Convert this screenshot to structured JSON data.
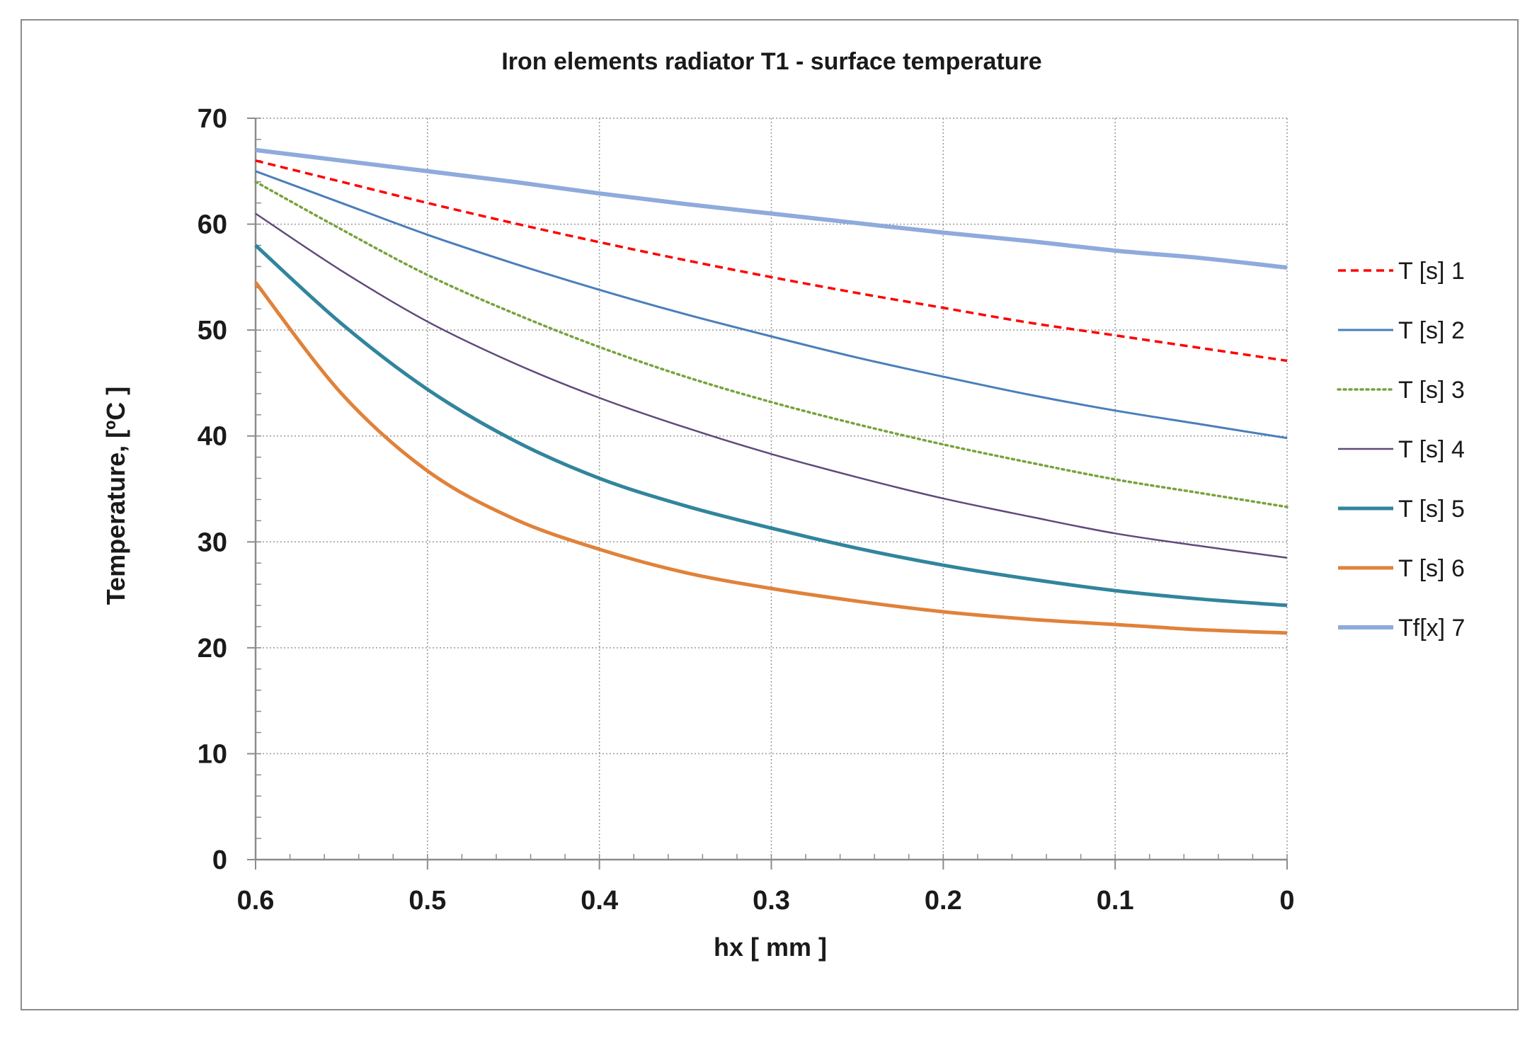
{
  "chart_data": {
    "type": "line",
    "title": "Iron elements radiator T1 - surface temperature",
    "xlabel": "hx [ mm ]",
    "ylabel": "Temperature,  [ºC ]",
    "xlim": [
      0.6,
      0
    ],
    "ylim": [
      0,
      70
    ],
    "x_ticks": [
      "0.6",
      "0.5",
      "0.4",
      "0.3",
      "0.2",
      "0.1",
      "0"
    ],
    "x_tick_values": [
      0.6,
      0.5,
      0.4,
      0.3,
      0.2,
      0.1,
      0
    ],
    "y_ticks": [
      "0",
      "10",
      "20",
      "30",
      "40",
      "50",
      "60",
      "70"
    ],
    "y_tick_values": [
      0,
      10,
      20,
      30,
      40,
      50,
      60,
      70
    ],
    "grid": true,
    "legend_position": "right",
    "x": [
      0.6,
      0.55,
      0.5,
      0.45,
      0.4,
      0.35,
      0.3,
      0.25,
      0.2,
      0.15,
      0.1,
      0.05,
      0
    ],
    "series": [
      {
        "name": "T [s] 1",
        "color": "#ff0000",
        "style": "dashed",
        "values": [
          66,
          64,
          62,
          60.1,
          58.3,
          56.6,
          55,
          53.5,
          52.1,
          50.7,
          49.5,
          48.3,
          47.1
        ]
      },
      {
        "name": "T [s] 2",
        "color": "#4a7ebb",
        "style": "solid",
        "values": [
          65,
          62,
          59,
          56.3,
          53.8,
          51.5,
          49.4,
          47.4,
          45.6,
          43.9,
          42.4,
          41.1,
          39.8
        ]
      },
      {
        "name": "T [s] 3",
        "color": "#77a33c",
        "style": "dotted",
        "values": [
          64,
          59.5,
          55.2,
          51.6,
          48.4,
          45.6,
          43.2,
          41.1,
          39.2,
          37.5,
          35.9,
          34.6,
          33.3
        ]
      },
      {
        "name": "T [s] 4",
        "color": "#604a7b",
        "style": "solid",
        "values": [
          61,
          55.6,
          50.8,
          46.9,
          43.6,
          40.8,
          38.3,
          36.1,
          34.1,
          32.4,
          30.8,
          29.6,
          28.5
        ]
      },
      {
        "name": "T [s] 5",
        "color": "#31859c",
        "style": "solid",
        "values": [
          58,
          50.6,
          44.4,
          39.6,
          36,
          33.4,
          31.3,
          29.4,
          27.8,
          26.5,
          25.4,
          24.6,
          24
        ]
      },
      {
        "name": "T [s] 6",
        "color": "#e0823a",
        "style": "solid",
        "values": [
          54.5,
          44,
          36.7,
          32.2,
          29.3,
          27.1,
          25.6,
          24.4,
          23.4,
          22.7,
          22.2,
          21.7,
          21.4
        ]
      },
      {
        "name": "Tf[x] 7",
        "color": "#8faadc",
        "style": "solid",
        "values": [
          67,
          66,
          65,
          64,
          62.9,
          61.9,
          61,
          60.1,
          59.2,
          58.4,
          57.5,
          56.8,
          55.9
        ]
      }
    ]
  }
}
